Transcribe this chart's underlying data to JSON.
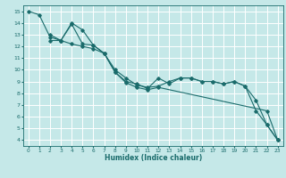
{
  "xlabel": "Humidex (Indice chaleur)",
  "xlim": [
    -0.5,
    23.5
  ],
  "ylim": [
    3.5,
    15.5
  ],
  "xticks": [
    0,
    1,
    2,
    3,
    4,
    5,
    6,
    7,
    8,
    9,
    10,
    11,
    12,
    13,
    14,
    15,
    16,
    17,
    18,
    19,
    20,
    21,
    22,
    23
  ],
  "yticks": [
    4,
    5,
    6,
    7,
    8,
    9,
    10,
    11,
    12,
    13,
    14,
    15
  ],
  "background_color": "#c5e8e8",
  "grid_color": "#ffffff",
  "line_color": "#1a6b6b",
  "lines": [
    {
      "x": [
        0,
        1,
        2,
        3,
        4,
        5,
        6,
        7,
        8,
        9,
        10,
        11,
        12,
        13,
        14,
        15,
        16,
        17,
        18,
        19,
        20,
        21,
        22,
        23
      ],
      "y": [
        15.0,
        14.7,
        12.8,
        12.5,
        13.9,
        12.2,
        12.1,
        11.4,
        9.8,
        9.0,
        8.8,
        8.4,
        9.3,
        8.8,
        9.3,
        9.3,
        9.0,
        9.0,
        8.8,
        9.0,
        8.6,
        7.4,
        5.3,
        4.0
      ]
    },
    {
      "x": [
        2,
        3,
        4,
        5,
        6,
        7,
        8,
        9,
        10,
        11,
        12,
        13,
        14,
        15,
        16,
        17,
        18,
        19,
        20,
        21,
        22,
        23
      ],
      "y": [
        13.0,
        12.5,
        14.0,
        13.4,
        12.1,
        11.4,
        10.0,
        9.3,
        8.7,
        8.5,
        8.6,
        9.0,
        9.3,
        9.3,
        9.0,
        9.0,
        8.8,
        9.0,
        8.6,
        6.5,
        5.3,
        4.0
      ]
    },
    {
      "x": [
        2,
        3,
        4,
        5,
        6,
        7,
        8,
        9,
        10,
        11,
        12,
        22,
        23
      ],
      "y": [
        12.5,
        12.5,
        12.2,
        12.0,
        11.8,
        11.4,
        9.8,
        8.9,
        8.5,
        8.3,
        8.5,
        6.5,
        4.0
      ]
    }
  ]
}
